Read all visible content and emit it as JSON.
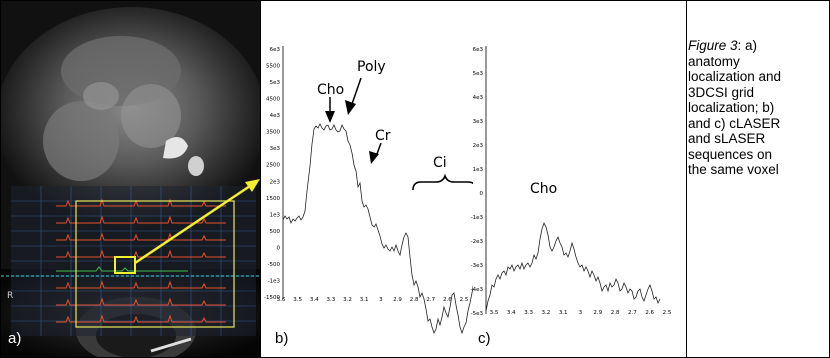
{
  "panels": {
    "a_label": "a)",
    "b_label": "b)",
    "c_label": "c)"
  },
  "caption": {
    "figure": "Figure 3",
    "lines": [
      ": a)",
      "anatomy",
      "localization and",
      "3DCSI grid",
      "localization; b)",
      "and c) cLASER",
      "and sLASER",
      "sequences on",
      "the same voxel"
    ]
  },
  "mri": {
    "side_marker": "R",
    "grid_color": "#e8e85a",
    "arrow_color": "#f2ee30"
  },
  "spectrum_b": {
    "y_ticks": [
      "6e3",
      "5500",
      "5e3",
      "4500",
      "4e3",
      "3500",
      "3e3",
      "2500",
      "2e3",
      "1500",
      "1e3",
      "500",
      "0",
      "-500",
      "-1e3",
      "-1500"
    ],
    "x_ticks": [
      "3.6",
      "3.5",
      "3.4",
      "3.3",
      "3.2",
      "3.1",
      "3",
      "2.9",
      "2.8",
      "2.7",
      "2.6",
      "2.5"
    ],
    "annotations": {
      "cho": "Cho",
      "poly": "Poly",
      "cr": "Cr",
      "ci": "Ci"
    }
  },
  "spectrum_c": {
    "y_ticks": [
      "6e3",
      "5e3",
      "4e3",
      "3e3",
      "2e3",
      "1e3",
      "0",
      "-1e3",
      "-2e3",
      "-3e3",
      "-4e3",
      "-5e3"
    ],
    "x_ticks": [
      "3.5",
      "3.4",
      "3.3",
      "3.2",
      "3.1",
      "3",
      "2.9",
      "2.8",
      "2.7",
      "2.6",
      "2.5"
    ],
    "annotations": {
      "cho": "Cho"
    }
  }
}
